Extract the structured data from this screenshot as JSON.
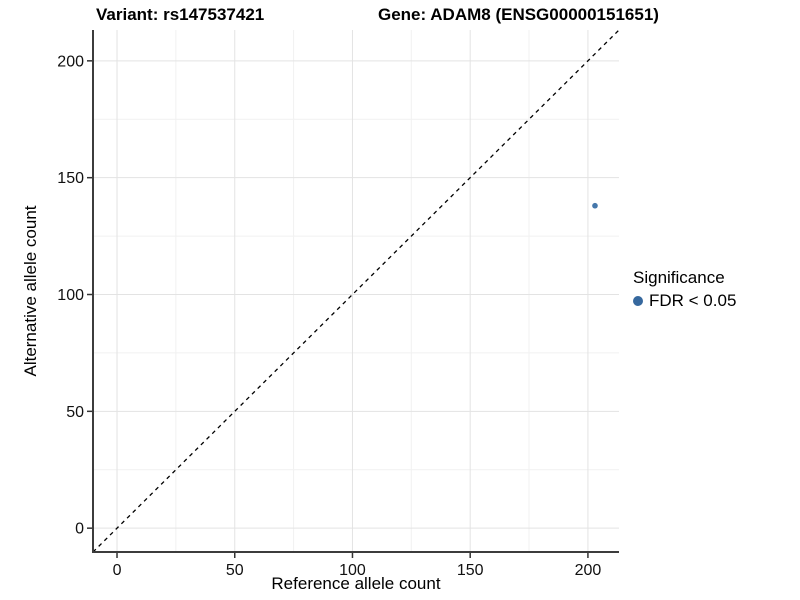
{
  "chart_data": {
    "type": "scatter",
    "title_left": "Variant: rs147537421",
    "title_right": "Gene: ADAM8 (ENSG00000151651)",
    "xlabel": "Reference allele count",
    "ylabel": "Alternative allele count",
    "xlim": [
      -10.2,
      213.2
    ],
    "ylim": [
      -10.2,
      213.2
    ],
    "x_ticks": [
      0,
      50,
      100,
      150,
      200
    ],
    "y_ticks": [
      0,
      50,
      100,
      150,
      200
    ],
    "x_minor_ticks": [
      25,
      75,
      125,
      175,
      225
    ],
    "y_minor_ticks": [
      25,
      75,
      125,
      175,
      225
    ],
    "grid": "major and minor gridlines, white panel",
    "points": [
      {
        "x": 203,
        "y": 138,
        "series": "FDR < 0.05"
      }
    ],
    "reference_line": {
      "slope": 1,
      "intercept": 0,
      "style": "dashed",
      "meaning": "y = x identity line"
    },
    "legend": {
      "title": "Significance",
      "position": "right",
      "items": [
        {
          "label": "FDR < 0.05",
          "color": "#36689e"
        }
      ]
    }
  },
  "colors": {
    "point": "#4577ab",
    "legend_dot": "#36689e",
    "grid_major": "#e3e3e3",
    "grid_minor": "#f1f1f1",
    "axis_line": "#3c3c3c",
    "tick_mark": "#333333",
    "tick_label": "#111111",
    "dashed_line": "#000000",
    "background": "#ffffff"
  }
}
